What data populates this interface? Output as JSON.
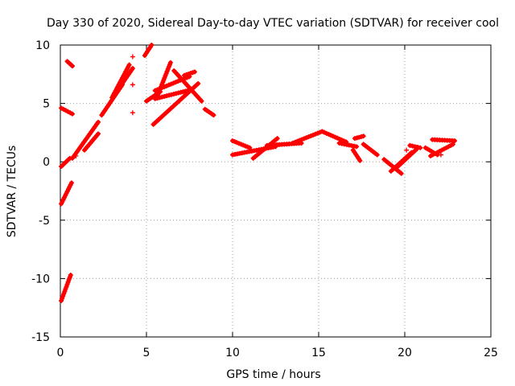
{
  "chart_data": {
    "type": "scatter",
    "title": "Day 330 of 2020, Sidereal Day-to-day VTEC variation (SDTVAR) for receiver cool",
    "xlabel": "GPS time / hours",
    "ylabel": "SDTVAR / TECUs",
    "xlim": [
      0,
      25
    ],
    "ylim": [
      -15,
      10
    ],
    "xticks": [
      0,
      5,
      10,
      15,
      20,
      25
    ],
    "yticks": [
      -15,
      -10,
      -5,
      0,
      5,
      10
    ],
    "xtick_labels": [
      "0",
      "5",
      "10",
      "15",
      "20",
      "25"
    ],
    "ytick_labels": [
      "-15",
      "-10",
      "-5",
      "0",
      "5",
      "10"
    ],
    "grid": true,
    "marker": "+",
    "color": "#ff0000",
    "tracks": [
      {
        "x": [
          0.05,
          0.6
        ],
        "y": [
          -11.9,
          -9.7
        ]
      },
      {
        "x": [
          0.05,
          0.65
        ],
        "y": [
          -3.6,
          -1.8
        ]
      },
      {
        "x": [
          0.05,
          0.55
        ],
        "y": [
          -0.4,
          0.3
        ]
      },
      {
        "x": [
          0.05,
          0.7
        ],
        "y": [
          4.6,
          4.1
        ]
      },
      {
        "x": [
          0.4,
          0.7
        ],
        "y": [
          8.6,
          8.2
        ]
      },
      {
        "x": [
          0.7,
          2.2
        ],
        "y": [
          0.3,
          3.4
        ]
      },
      {
        "x": [
          1.4,
          2.2
        ],
        "y": [
          1.0,
          2.4
        ]
      },
      {
        "x": [
          2.4,
          3.6
        ],
        "y": [
          4.0,
          6.6
        ]
      },
      {
        "x": [
          3.0,
          4.0
        ],
        "y": [
          5.5,
          8.3
        ]
      },
      {
        "x": [
          3.5,
          4.2
        ],
        "y": [
          6.5,
          8.0
        ]
      },
      {
        "x": [
          4.9,
          5.3
        ],
        "y": [
          9.1,
          10.0
        ]
      },
      {
        "x": [
          5.0,
          5.8
        ],
        "y": [
          5.2,
          6.0
        ]
      },
      {
        "x": [
          5.5,
          7.4
        ],
        "y": [
          5.4,
          6.1
        ]
      },
      {
        "x": [
          5.6,
          6.4
        ],
        "y": [
          5.5,
          8.5
        ]
      },
      {
        "x": [
          6.6,
          8.2
        ],
        "y": [
          7.8,
          5.2
        ]
      },
      {
        "x": [
          5.4,
          8.0
        ],
        "y": [
          3.2,
          6.7
        ]
      },
      {
        "x": [
          5.5,
          7.5
        ],
        "y": [
          6.1,
          7.3
        ]
      },
      {
        "x": [
          7.2,
          7.8
        ],
        "y": [
          7.4,
          7.7
        ]
      },
      {
        "x": [
          8.4,
          8.9
        ],
        "y": [
          4.5,
          4.0
        ]
      },
      {
        "x": [
          10.0,
          12.5
        ],
        "y": [
          0.6,
          1.3
        ]
      },
      {
        "x": [
          10.0,
          11.0
        ],
        "y": [
          1.8,
          1.2
        ]
      },
      {
        "x": [
          11.2,
          12.6
        ],
        "y": [
          0.3,
          2.0
        ]
      },
      {
        "x": [
          12.0,
          14.0
        ],
        "y": [
          1.4,
          1.6
        ]
      },
      {
        "x": [
          13.5,
          15.2
        ],
        "y": [
          1.6,
          2.6
        ]
      },
      {
        "x": [
          15.2,
          16.6
        ],
        "y": [
          2.6,
          1.7
        ]
      },
      {
        "x": [
          16.2,
          17.2
        ],
        "y": [
          1.6,
          1.3
        ]
      },
      {
        "x": [
          17.1,
          17.6
        ],
        "y": [
          2.0,
          2.2
        ]
      },
      {
        "x": [
          17.6,
          18.4
        ],
        "y": [
          1.5,
          0.6
        ]
      },
      {
        "x": [
          17.0,
          17.4
        ],
        "y": [
          1.0,
          0.1
        ]
      },
      {
        "x": [
          18.8,
          19.8
        ],
        "y": [
          0.2,
          -1.0
        ]
      },
      {
        "x": [
          19.2,
          20.4
        ],
        "y": [
          -0.8,
          0.8
        ]
      },
      {
        "x": [
          19.6,
          20.7
        ],
        "y": [
          -0.4,
          1.1
        ]
      },
      {
        "x": [
          20.3,
          20.9
        ],
        "y": [
          1.4,
          1.2
        ]
      },
      {
        "x": [
          21.2,
          21.9
        ],
        "y": [
          1.2,
          0.6
        ]
      },
      {
        "x": [
          21.5,
          22.8
        ],
        "y": [
          0.5,
          1.5
        ]
      },
      {
        "x": [
          21.6,
          22.9
        ],
        "y": [
          1.9,
          1.8
        ]
      }
    ],
    "points": [
      {
        "x": 4.2,
        "y": 9.0
      },
      {
        "x": 4.2,
        "y": 6.6
      },
      {
        "x": 4.2,
        "y": 4.2
      },
      {
        "x": 0.9,
        "y": 0.5
      },
      {
        "x": 20.1,
        "y": 1.0
      },
      {
        "x": 22.1,
        "y": 0.6
      }
    ]
  }
}
